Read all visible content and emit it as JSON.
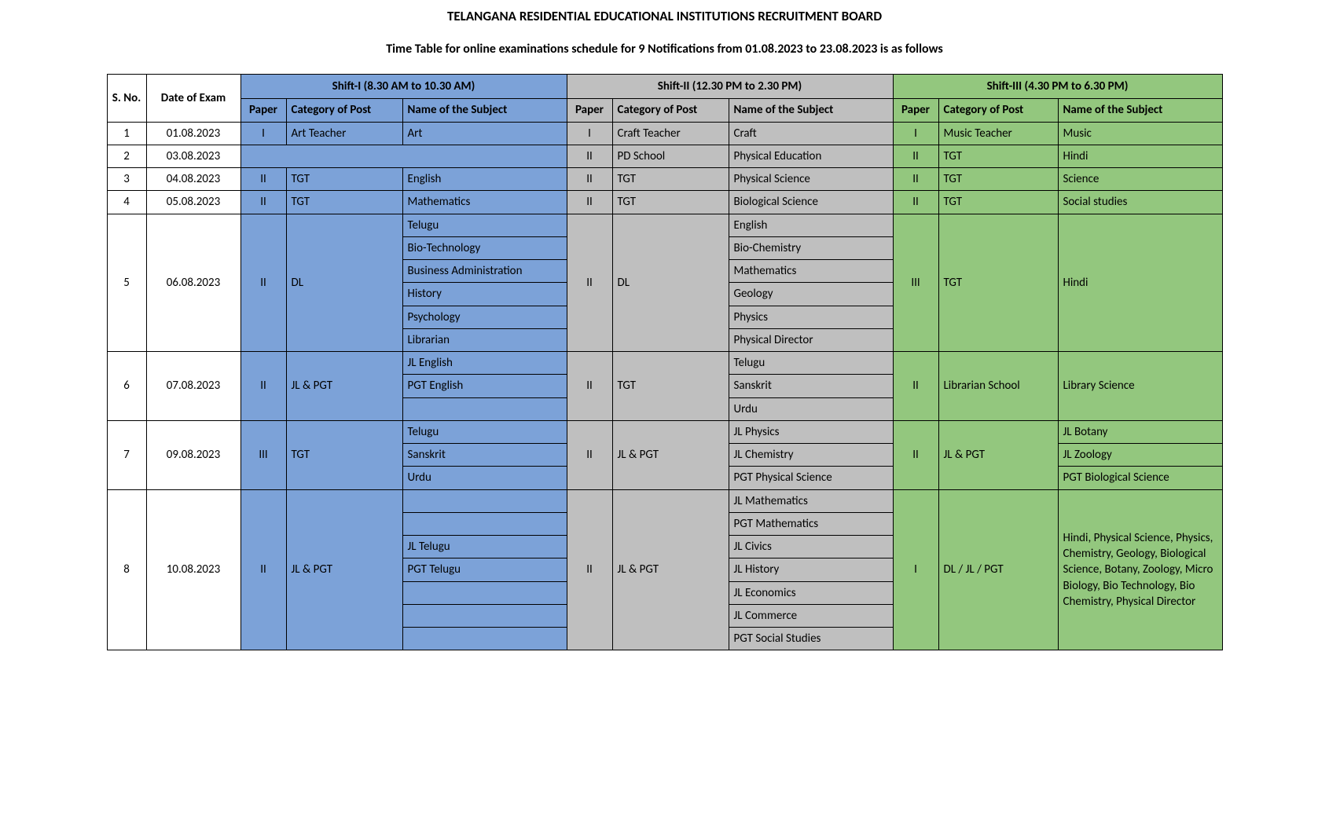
{
  "colors": {
    "shift1_bg": "#7ca2d8",
    "shift2_bg": "#bfbfbf",
    "shift3_bg": "#93c77e",
    "border": "#000000",
    "page_bg": "#ffffff"
  },
  "typography": {
    "title_fontsize_pt": 13,
    "subtitle_fontsize_pt": 12,
    "body_fontsize_pt": 11,
    "font_family": "Calibri"
  },
  "title": "TELANGANA RESIDENTIAL EDUCATIONAL INSTITUTIONS RECRUITMENT BOARD",
  "subtitle": "Time Table for online examinations schedule for 9 Notifications from 01.08.2023 to 23.08.2023 is as follows",
  "header": {
    "sno": "S. No.",
    "date": "Date of Exam",
    "shifts": [
      {
        "label": "Shift-I (8.30 AM to 10.30 AM)",
        "cols": {
          "paper": "Paper",
          "category": "Category of Post",
          "subject": "Name of the Subject"
        }
      },
      {
        "label": "Shift-II (12.30 PM to 2.30 PM)",
        "cols": {
          "paper": "Paper",
          "category": "Category of Post",
          "subject": "Name of the Subject"
        }
      },
      {
        "label": "Shift-III (4.30 PM to 6.30 PM)",
        "cols": {
          "paper": "Paper",
          "category": "Category of Post",
          "subject": "Name of the Subject"
        }
      }
    ]
  },
  "rows": [
    {
      "sno": "1",
      "date": "01.08.2023",
      "s1": {
        "paper": "I",
        "category": "Art Teacher",
        "subjects": [
          "Art"
        ]
      },
      "s2": {
        "paper": "I",
        "category": "Craft Teacher",
        "subjects": [
          "Craft"
        ]
      },
      "s3": {
        "paper": "I",
        "category": "Music Teacher",
        "subjects": [
          "Music"
        ]
      }
    },
    {
      "sno": "2",
      "date": "03.08.2023",
      "s1": null,
      "s2": {
        "paper": "II",
        "category": "PD School",
        "subjects": [
          "Physical Education"
        ]
      },
      "s3": {
        "paper": "II",
        "category": "TGT",
        "subjects": [
          "Hindi"
        ]
      }
    },
    {
      "sno": "3",
      "date": "04.08.2023",
      "s1": {
        "paper": "II",
        "category": "TGT",
        "subjects": [
          "English"
        ]
      },
      "s2": {
        "paper": "II",
        "category": "TGT",
        "subjects": [
          "Physical Science"
        ]
      },
      "s3": {
        "paper": "II",
        "category": "TGT",
        "subjects": [
          "Science"
        ]
      }
    },
    {
      "sno": "4",
      "date": "05.08.2023",
      "s1": {
        "paper": "II",
        "category": "TGT",
        "subjects": [
          "Mathematics"
        ]
      },
      "s2": {
        "paper": "II",
        "category": "TGT",
        "subjects": [
          "Biological Science"
        ]
      },
      "s3": {
        "paper": "II",
        "category": "TGT",
        "subjects": [
          "Social studies"
        ]
      }
    },
    {
      "sno": "5",
      "date": "06.08.2023",
      "s1": {
        "paper": "II",
        "category": "DL",
        "subjects": [
          "Telugu",
          "Bio-Technology",
          "Business Administration",
          "History",
          "Psychology",
          "Librarian"
        ]
      },
      "s2": {
        "paper": "II",
        "category": "DL",
        "subjects": [
          "English",
          "Bio-Chemistry",
          "Mathematics",
          "Geology",
          "Physics",
          "Physical Director"
        ]
      },
      "s3": {
        "paper": "III",
        "category": "TGT",
        "subjects": [
          "Hindi"
        ]
      }
    },
    {
      "sno": "6",
      "date": "07.08.2023",
      "s1": {
        "paper": "II",
        "category": "JL & PGT",
        "subjects": [
          "JL English",
          "PGT English",
          ""
        ]
      },
      "s2": {
        "paper": "II",
        "category": "TGT",
        "subjects": [
          "Telugu",
          "Sanskrit",
          "Urdu"
        ]
      },
      "s3": {
        "paper": "II",
        "category": "Librarian School",
        "subjects": [
          "Library Science"
        ]
      }
    },
    {
      "sno": "7",
      "date": "09.08.2023",
      "s1": {
        "paper": "III",
        "category": "TGT",
        "subjects": [
          "Telugu",
          "Sanskrit",
          "Urdu"
        ]
      },
      "s2": {
        "paper": "II",
        "category": "JL & PGT",
        "subjects": [
          "JL Physics",
          "JL Chemistry",
          "PGT Physical Science"
        ]
      },
      "s3": {
        "paper": "II",
        "category": "JL & PGT",
        "subjects": [
          "JL Botany",
          "JL Zoology",
          "PGT Biological Science"
        ]
      }
    },
    {
      "sno": "8",
      "date": "10.08.2023",
      "s1": {
        "paper": "II",
        "category": "JL & PGT",
        "subjects": [
          "",
          "",
          "JL Telugu",
          "PGT Telugu",
          "",
          "",
          ""
        ]
      },
      "s2": {
        "paper": "II",
        "category": "JL & PGT",
        "subjects": [
          "JL Mathematics",
          "PGT Mathematics",
          "JL Civics",
          "JL History",
          "JL Economics",
          "JL Commerce",
          "PGT Social Studies"
        ]
      },
      "s3": {
        "paper": "I",
        "category": "DL / JL / PGT",
        "subjects": [
          "Hindi, Physical Science, Physics, Chemistry, Geology, Biological Science, Botany, Zoology, Micro Biology, Bio Technology, Bio Chemistry, Physical Director"
        ]
      }
    }
  ]
}
